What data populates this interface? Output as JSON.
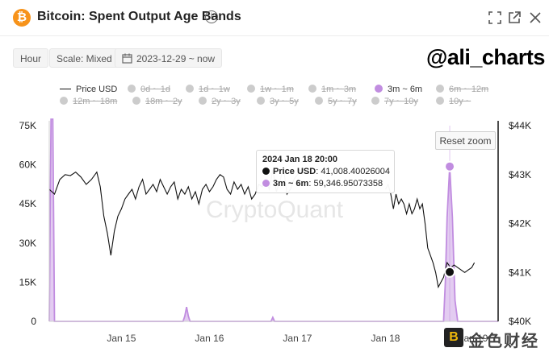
{
  "header": {
    "title": "Bitcoin: Spent Output Age Bands",
    "info_glyph": "i",
    "coin_glyph": "₿"
  },
  "toolbar": {
    "interval": "Hour",
    "scale": "Scale: Mixed",
    "date_range": "2023-12-29 ~ now"
  },
  "watermark": {
    "handle": "@ali_charts",
    "center_text": "CryptoQuant",
    "corner_logo_glyph": "B",
    "corner_text": "金色财经"
  },
  "legend": {
    "items": [
      {
        "label": "Price USD",
        "active": true,
        "kind": "line",
        "color": "#111111"
      },
      {
        "label": "0d ~ 1d",
        "active": false,
        "kind": "dot",
        "color": "#cccccc"
      },
      {
        "label": "1d ~ 1w",
        "active": false,
        "kind": "dot",
        "color": "#cccccc"
      },
      {
        "label": "1w ~ 1m",
        "active": false,
        "kind": "dot",
        "color": "#cccccc"
      },
      {
        "label": "1m ~ 3m",
        "active": false,
        "kind": "dot",
        "color": "#cccccc"
      },
      {
        "label": "3m ~ 6m",
        "active": true,
        "kind": "dot",
        "color": "#c18de0"
      },
      {
        "label": "6m ~ 12m",
        "active": false,
        "kind": "dot",
        "color": "#cccccc"
      },
      {
        "label": "12m ~ 18m",
        "active": false,
        "kind": "dot",
        "color": "#cccccc"
      },
      {
        "label": "18m ~ 2y",
        "active": false,
        "kind": "dot",
        "color": "#cccccc"
      },
      {
        "label": "2y ~ 3y",
        "active": false,
        "kind": "dot",
        "color": "#cccccc"
      },
      {
        "label": "3y ~ 5y",
        "active": false,
        "kind": "dot",
        "color": "#cccccc"
      },
      {
        "label": "5y ~ 7y",
        "active": false,
        "kind": "dot",
        "color": "#cccccc"
      },
      {
        "label": "7y ~ 10y",
        "active": false,
        "kind": "dot",
        "color": "#cccccc"
      },
      {
        "label": "10y ~",
        "active": false,
        "kind": "dot",
        "color": "#cccccc"
      }
    ]
  },
  "reset_zoom": "Reset zoom",
  "tooltip": {
    "date": "2024 Jan 18 20:00",
    "price_label": "Price USD",
    "price_value": ": 41,008.40026004",
    "band_label": "3m ~ 6m",
    "band_value": ": 59,346.95073358"
  },
  "chart_data": {
    "type": "line",
    "title": "Bitcoin: Spent Output Age Bands",
    "x_unit": "days since Jan 15 00:00",
    "x_ticks": [
      "Jan 15",
      "Jan 16",
      "Jan 17",
      "Jan 18",
      "Jan 19"
    ],
    "x_tick_values": [
      0,
      1,
      2,
      3,
      4
    ],
    "xlim": [
      -0.82,
      4.28
    ],
    "y_left": {
      "ticks": [
        "0",
        "15K",
        "30K",
        "45K",
        "60K",
        "75K"
      ],
      "lim": [
        0,
        75000
      ]
    },
    "y_right": {
      "ticks": [
        "$40K",
        "$41K",
        "$42K",
        "$43K",
        "$44K"
      ],
      "lim": [
        40000,
        44000
      ]
    },
    "grid": false,
    "series": [
      {
        "name": "Price USD",
        "axis": "right",
        "color": "#111111",
        "kind": "line",
        "points": [
          [
            -0.82,
            42700
          ],
          [
            -0.76,
            42600
          ],
          [
            -0.7,
            42900
          ],
          [
            -0.64,
            43000
          ],
          [
            -0.58,
            42980
          ],
          [
            -0.52,
            43050
          ],
          [
            -0.46,
            42950
          ],
          [
            -0.4,
            42800
          ],
          [
            -0.34,
            42900
          ],
          [
            -0.28,
            43050
          ],
          [
            -0.24,
            42750
          ],
          [
            -0.2,
            42150
          ],
          [
            -0.16,
            41800
          ],
          [
            -0.12,
            41350
          ],
          [
            -0.08,
            41850
          ],
          [
            -0.04,
            42150
          ],
          [
            0.0,
            42300
          ],
          [
            0.04,
            42500
          ],
          [
            0.08,
            42600
          ],
          [
            0.12,
            42700
          ],
          [
            0.16,
            42500
          ],
          [
            0.2,
            42750
          ],
          [
            0.24,
            42900
          ],
          [
            0.28,
            42600
          ],
          [
            0.32,
            42700
          ],
          [
            0.36,
            42800
          ],
          [
            0.4,
            42650
          ],
          [
            0.44,
            42900
          ],
          [
            0.48,
            42750
          ],
          [
            0.52,
            42600
          ],
          [
            0.56,
            42750
          ],
          [
            0.6,
            42850
          ],
          [
            0.64,
            42500
          ],
          [
            0.68,
            42700
          ],
          [
            0.72,
            42600
          ],
          [
            0.76,
            42750
          ],
          [
            0.8,
            42500
          ],
          [
            0.84,
            42650
          ],
          [
            0.88,
            42400
          ],
          [
            0.92,
            42700
          ],
          [
            0.96,
            42800
          ],
          [
            1.0,
            42650
          ],
          [
            1.04,
            42750
          ],
          [
            1.08,
            42900
          ],
          [
            1.12,
            43000
          ],
          [
            1.16,
            42950
          ],
          [
            1.2,
            42700
          ],
          [
            1.24,
            42600
          ],
          [
            1.28,
            42850
          ],
          [
            1.32,
            42700
          ],
          [
            1.36,
            42800
          ],
          [
            1.4,
            42600
          ],
          [
            1.44,
            42750
          ],
          [
            1.48,
            42500
          ],
          [
            1.52,
            42600
          ],
          [
            1.56,
            42800
          ],
          [
            1.6,
            42750
          ],
          [
            1.64,
            42900
          ],
          [
            1.68,
            42700
          ],
          [
            1.72,
            43100
          ],
          [
            1.76,
            42650
          ],
          [
            1.8,
            42850
          ],
          [
            1.84,
            43150
          ],
          [
            1.88,
            42600
          ],
          [
            1.92,
            42700
          ],
          [
            1.96,
            42900
          ],
          [
            2.0,
            43000
          ],
          [
            2.03,
            43100
          ],
          [
            2.06,
            43000
          ],
          [
            3.0,
            42700
          ],
          [
            3.03,
            42800
          ],
          [
            3.06,
            42600
          ],
          [
            3.09,
            42300
          ],
          [
            3.12,
            42600
          ],
          [
            3.15,
            42400
          ],
          [
            3.18,
            42500
          ],
          [
            3.21,
            42400
          ],
          [
            3.24,
            42200
          ],
          [
            3.27,
            42400
          ],
          [
            3.3,
            42200
          ],
          [
            3.33,
            42300
          ],
          [
            3.36,
            42500
          ],
          [
            3.39,
            42300
          ],
          [
            3.42,
            42400
          ],
          [
            3.45,
            42000
          ],
          [
            3.48,
            41500
          ],
          [
            3.51,
            41350
          ],
          [
            3.54,
            41200
          ],
          [
            3.57,
            41000
          ],
          [
            3.6,
            40700
          ],
          [
            3.63,
            40800
          ],
          [
            3.66,
            40900
          ],
          [
            3.7,
            41200
          ],
          [
            3.74,
            41100
          ],
          [
            3.78,
            41150
          ],
          [
            3.82,
            41100
          ],
          [
            3.86,
            41050
          ],
          [
            3.9,
            41000
          ],
          [
            3.94,
            41050
          ],
          [
            3.98,
            41100
          ],
          [
            4.01,
            41200
          ]
        ]
      },
      {
        "name": "3m ~ 6m",
        "axis": "left",
        "color": "#c18de0",
        "kind": "area",
        "points": [
          [
            -0.82,
            0
          ],
          [
            -0.8,
            80000
          ],
          [
            -0.78,
            80000
          ],
          [
            -0.76,
            0
          ],
          [
            0.7,
            0
          ],
          [
            0.72,
            2000
          ],
          [
            0.74,
            5500
          ],
          [
            0.76,
            2000
          ],
          [
            0.78,
            0
          ],
          [
            1.7,
            0
          ],
          [
            1.72,
            1500
          ],
          [
            1.74,
            0
          ],
          [
            3.66,
            0
          ],
          [
            3.68,
            15000
          ],
          [
            3.7,
            40000
          ],
          [
            3.73,
            59346.95
          ],
          [
            3.76,
            40000
          ],
          [
            3.79,
            8000
          ],
          [
            3.82,
            0
          ],
          [
            4.28,
            0
          ]
        ]
      }
    ],
    "highlight": {
      "x_label": "2024 Jan 18 20:00",
      "price": 41008.40026004,
      "band_3m_6m": 59346.95073358
    }
  }
}
